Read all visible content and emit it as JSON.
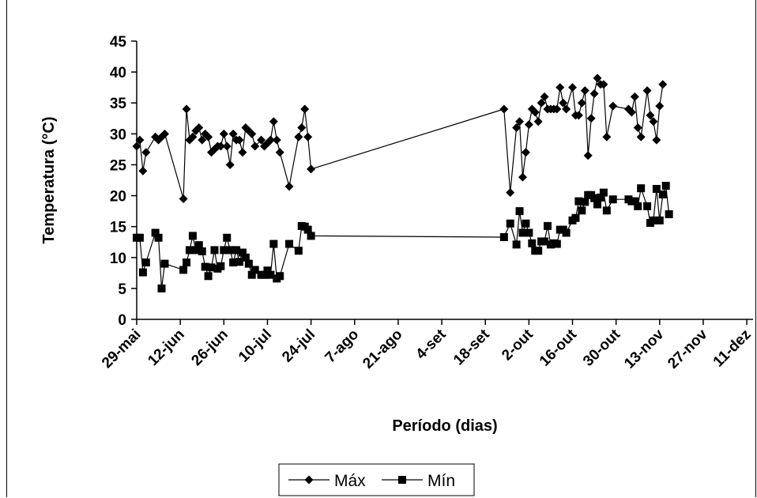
{
  "chart_data": {
    "type": "line",
    "xlabel": "Período (dias)",
    "ylabel": "Temperatura (°C)",
    "ylim": [
      0,
      45
    ],
    "yticks": [
      "0",
      "5",
      "10",
      "15",
      "20",
      "25",
      "30",
      "35",
      "40",
      "45"
    ],
    "xticks": [
      {
        "label": "29-mai",
        "date": "2000-05-29"
      },
      {
        "label": "12-jun",
        "date": "2000-06-12"
      },
      {
        "label": "26-jun",
        "date": "2000-06-26"
      },
      {
        "label": "10-jul",
        "date": "2000-07-10"
      },
      {
        "label": "24-jul",
        "date": "2000-07-24"
      },
      {
        "label": "7-ago",
        "date": "2000-08-07"
      },
      {
        "label": "21-ago",
        "date": "2000-08-21"
      },
      {
        "label": "4-set",
        "date": "2000-09-04"
      },
      {
        "label": "18-set",
        "date": "2000-09-18"
      },
      {
        "label": "2-out",
        "date": "2000-10-02"
      },
      {
        "label": "16-out",
        "date": "2000-10-16"
      },
      {
        "label": "30-out",
        "date": "2000-10-30"
      },
      {
        "label": "13-nov",
        "date": "2000-11-13"
      },
      {
        "label": "27-nov",
        "date": "2000-11-27"
      },
      {
        "label": "11-dez",
        "date": "2000-12-11"
      }
    ],
    "grid": false,
    "legend_position": "bottom-center",
    "x_dates": [
      "2000-05-29",
      "2000-05-30",
      "2000-05-31",
      "2000-06-01",
      "2000-06-04",
      "2000-06-05",
      "2000-06-06",
      "2000-06-07",
      "2000-06-13",
      "2000-06-14",
      "2000-06-15",
      "2000-06-16",
      "2000-06-17",
      "2000-06-18",
      "2000-06-19",
      "2000-06-20",
      "2000-06-21",
      "2000-06-22",
      "2000-06-23",
      "2000-06-24",
      "2000-06-25",
      "2000-06-26",
      "2000-06-27",
      "2000-06-28",
      "2000-06-29",
      "2000-06-30",
      "2000-07-01",
      "2000-07-02",
      "2000-07-03",
      "2000-07-04",
      "2000-07-05",
      "2000-07-06",
      "2000-07-08",
      "2000-07-09",
      "2000-07-10",
      "2000-07-11",
      "2000-07-12",
      "2000-07-13",
      "2000-07-14",
      "2000-07-17",
      "2000-07-20",
      "2000-07-21",
      "2000-07-22",
      "2000-07-23",
      "2000-07-24",
      "2000-09-24",
      "2000-09-26",
      "2000-09-28",
      "2000-09-29",
      "2000-09-30",
      "2000-10-01",
      "2000-10-02",
      "2000-10-03",
      "2000-10-04",
      "2000-10-05",
      "2000-10-06",
      "2000-10-07",
      "2000-10-08",
      "2000-10-09",
      "2000-10-10",
      "2000-10-11",
      "2000-10-12",
      "2000-10-13",
      "2000-10-14",
      "2000-10-16",
      "2000-10-17",
      "2000-10-18",
      "2000-10-19",
      "2000-10-20",
      "2000-10-21",
      "2000-10-22",
      "2000-10-23",
      "2000-10-24",
      "2000-10-25",
      "2000-10-26",
      "2000-10-27",
      "2000-10-29",
      "2000-11-03",
      "2000-11-04",
      "2000-11-05",
      "2000-11-06",
      "2000-11-07",
      "2000-11-09",
      "2000-11-10",
      "2000-11-11",
      "2000-11-12",
      "2000-11-13",
      "2000-11-14",
      "2000-11-15",
      "2000-11-16",
      "2000-11-17",
      "2000-11-24",
      "2000-11-25",
      "2000-12-12"
    ],
    "series": [
      {
        "name": "Máx",
        "marker": "diamond",
        "values": [
          28,
          29,
          24,
          27,
          29.5,
          29,
          29.5,
          30,
          19.5,
          34,
          29,
          29.5,
          30.5,
          31,
          29,
          30,
          29.5,
          27,
          27.5,
          28,
          28,
          30,
          28,
          25,
          30,
          29,
          29,
          27,
          31,
          30.5,
          30,
          28,
          29,
          28,
          28.5,
          29,
          32,
          29,
          27,
          21.5,
          29.5,
          31,
          34,
          29.5,
          24.3,
          34,
          20.5,
          31,
          32,
          23,
          27,
          31.5,
          34,
          33.5,
          32,
          35,
          36,
          34,
          34,
          34,
          34,
          37.5,
          35,
          34,
          37.5,
          33,
          33,
          35,
          37,
          26.5,
          32.5,
          36.5,
          39,
          38,
          38,
          29.5,
          34.5,
          34,
          33.5,
          36,
          31,
          29.5,
          37,
          33,
          32,
          29,
          34.5,
          38,
          null,
          null,
          null,
          null,
          null,
          null
        ]
      },
      {
        "name": "Mín",
        "marker": "square",
        "values": [
          13.2,
          13.2,
          7.6,
          9.2,
          14,
          13.2,
          5,
          9,
          8,
          9.2,
          11.2,
          13.5,
          11.2,
          12,
          11,
          8.5,
          7,
          8.4,
          11.2,
          8.2,
          8.6,
          11.2,
          13.2,
          11.2,
          9.2,
          11.2,
          9.3,
          10.8,
          10,
          9,
          7.2,
          8,
          7.2,
          7.2,
          7.9,
          7.2,
          12.2,
          6.6,
          7,
          12.2,
          11.1,
          15.1,
          15,
          14.5,
          13.5,
          13.3,
          15.5,
          12.1,
          17.5,
          14,
          15.5,
          14,
          12.3,
          11.1,
          11.1,
          12.6,
          12.6,
          15.1,
          12.1,
          12.3,
          12.2,
          14.5,
          14.5,
          14,
          16,
          16.4,
          19.1,
          17.6,
          19,
          20.1,
          20.1,
          19.6,
          18.6,
          19.7,
          20.5,
          17.6,
          19.4,
          19.4,
          19.1,
          19.1,
          18.3,
          21.2,
          18.3,
          15.6,
          16,
          21.1,
          16,
          20.2,
          21.6,
          17,
          null,
          null,
          null,
          null
        ]
      }
    ]
  }
}
